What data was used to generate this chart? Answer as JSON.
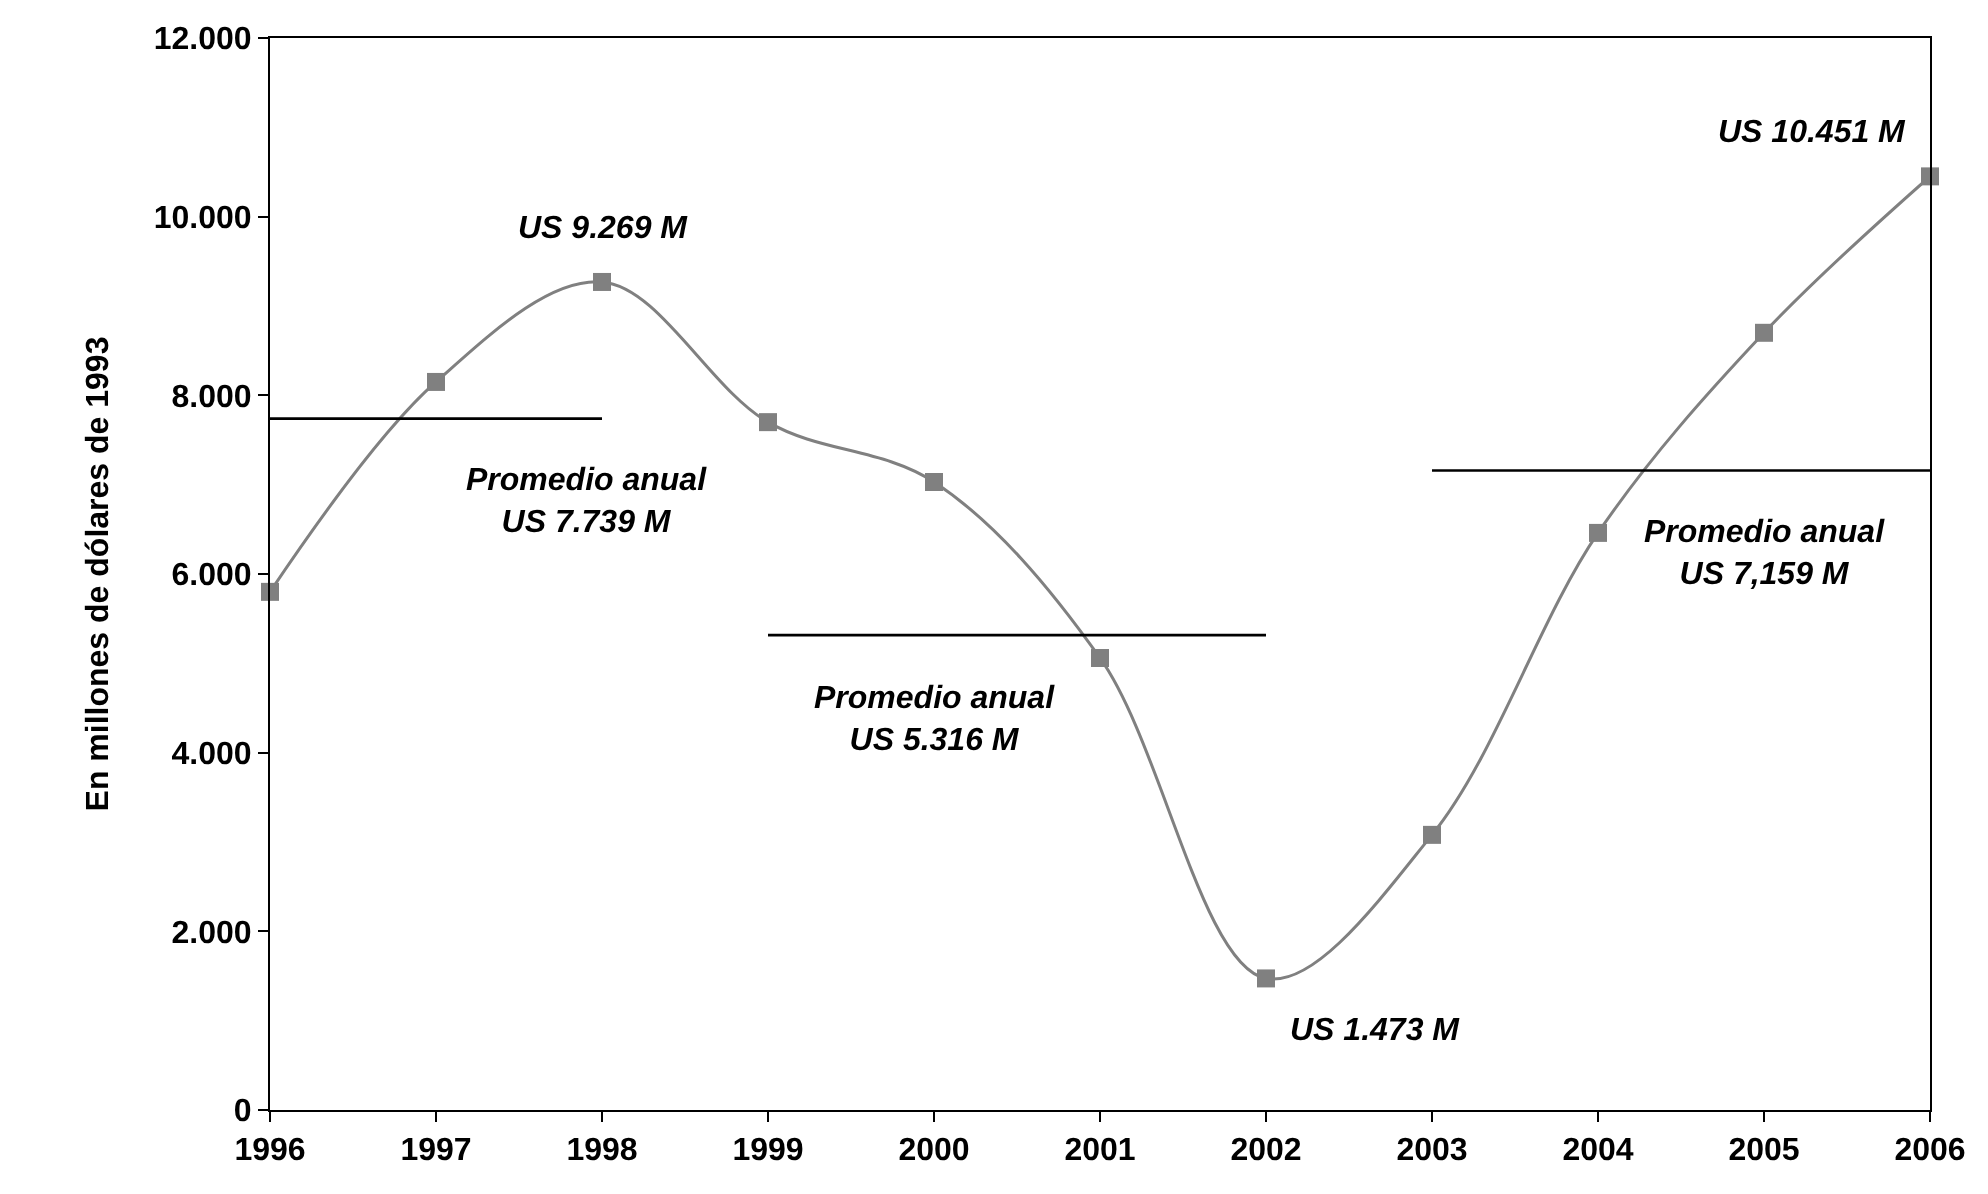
{
  "chart_data": {
    "type": "line",
    "ylabel": "En millones de dólares de 1993",
    "x": [
      1996,
      1997,
      1998,
      1999,
      2000,
      2001,
      2002,
      2003,
      2004,
      2005,
      2006
    ],
    "series": [
      {
        "color": "#808080",
        "values": [
          5800,
          8150,
          9269,
          7700,
          7030,
          5060,
          1473,
          3080,
          6460,
          8700,
          10451
        ],
        "marker": "square"
      },
      {
        "type": "line",
        "color": "#000000",
        "x": [
          1996,
          1998
        ],
        "values": [
          7739,
          7739
        ],
        "marker": "none"
      },
      {
        "type": "line",
        "color": "#000000",
        "x": [
          1999,
          2002
        ],
        "values": [
          5316,
          5316
        ],
        "marker": "none"
      },
      {
        "type": "line",
        "color": "#000000",
        "x": [
          2003,
          2006
        ],
        "values": [
          7159,
          7159
        ],
        "marker": "none"
      }
    ],
    "xlim": [
      1996,
      2006
    ],
    "xticks": [
      1996,
      1997,
      1998,
      1999,
      2000,
      2001,
      2002,
      2003,
      2004,
      2005,
      2006
    ],
    "ylim": [
      0,
      12000
    ],
    "yticks": [
      {
        "value": 0,
        "label": "0"
      },
      {
        "value": 2000,
        "label": "2.000"
      },
      {
        "value": 4000,
        "label": "4.000"
      },
      {
        "value": 6000,
        "label": "6.000"
      },
      {
        "value": 8000,
        "label": "8.000"
      },
      {
        "value": 10000,
        "label": "10.000"
      },
      {
        "value": 12000,
        "label": "12.000"
      }
    ],
    "grid": false,
    "line_style": "solid",
    "annotations": [
      {
        "text": "US 9.269 M",
        "x": 1998,
        "y": 9269
      },
      {
        "text": "US 1.473 M",
        "x": 2002,
        "y": 1473
      },
      {
        "text": "US 10.451 M",
        "x": 2006,
        "y": 10451
      },
      {
        "text": "Promedio anual\nUS 7.739 M",
        "x": 1998,
        "y": 7739
      },
      {
        "text": "Promedio anual\nUS 5.316 M",
        "x": 2000,
        "y": 5316
      },
      {
        "text": "Promedio anual\nUS 7,159 M",
        "x": 2005,
        "y": 7159
      }
    ]
  }
}
